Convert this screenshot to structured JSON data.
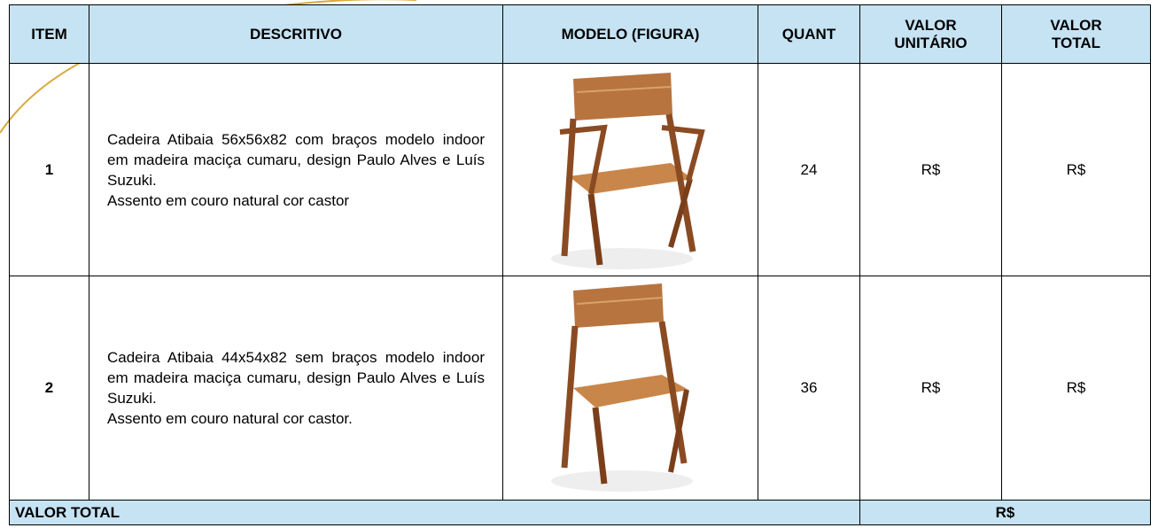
{
  "header": {
    "item": "ITEM",
    "description": "DESCRITIVO",
    "model": "MODELO (FIGURA)",
    "quantity": "QUANT",
    "unit_value": "VALOR UNITÁRIO",
    "total_value": "VALOR TOTAL"
  },
  "rows": [
    {
      "item": "1",
      "description": "Cadeira Atibaia 56x56x82 com braços modelo indoor em madeira maciça cumaru, design Paulo Alves e Luís Suzuki.",
      "note": "Assento em couro natural cor castor",
      "quantity": "24",
      "unit_value": "R$",
      "total_value": "R$"
    },
    {
      "item": "2",
      "description": "Cadeira Atibaia 44x54x82 sem braços modelo indoor em madeira maciça cumaru, design Paulo Alves e Luís Suzuki.",
      "note": "Assento em couro natural cor castor.",
      "quantity": "36",
      "unit_value": "R$",
      "total_value": "R$"
    }
  ],
  "footer": {
    "label": "VALOR TOTAL",
    "value": "R$"
  }
}
